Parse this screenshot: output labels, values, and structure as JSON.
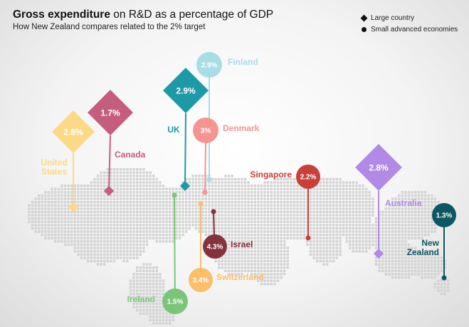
{
  "title_bold": "Gross expenditure",
  "title_rest": " on R&D as a percentage of GDP",
  "subtitle": "How New Zealand compares related to the 2% target",
  "legend": {
    "large": "Large country",
    "small": "Small advanced economies"
  },
  "chart_data": {
    "type": "scatter",
    "title": "Gross expenditure on R&D as a percentage of GDP",
    "subtitle": "How New Zealand compares related to the 2% target",
    "legend_placement": "top-right",
    "series": [
      {
        "name": "Large country",
        "marker": "diamond"
      },
      {
        "name": "Small advanced economies",
        "marker": "circle"
      }
    ],
    "points": [
      {
        "id": "usa",
        "country": "United States",
        "value_label": "2.8%",
        "value": 2.8,
        "group": "Large country",
        "color": "#fcd987"
      },
      {
        "id": "canada",
        "country": "Canada",
        "value_label": "1.7%",
        "value": 1.7,
        "group": "Large country",
        "color": "#c55d7d"
      },
      {
        "id": "uk",
        "country": "UK",
        "value_label": "2.9%",
        "value": 2.9,
        "group": "Large country",
        "color": "#1e9aa7"
      },
      {
        "id": "australia",
        "country": "Australia",
        "value_label": "2.8%",
        "value": 2.8,
        "group": "Large country",
        "color": "#b18ae6"
      },
      {
        "id": "finland",
        "country": "Finland",
        "value_label": "2.9%",
        "value": 2.9,
        "group": "Small advanced economies",
        "color": "#a9dde6"
      },
      {
        "id": "denmark",
        "country": "Denmark",
        "value_label": "3%",
        "value": 3.0,
        "group": "Small advanced economies",
        "color": "#f59592"
      },
      {
        "id": "singapore",
        "country": "Singapore",
        "value_label": "2.2%",
        "value": 2.2,
        "group": "Small advanced economies",
        "color": "#c8403a"
      },
      {
        "id": "israel",
        "country": "Israel",
        "value_label": "4.3%",
        "value": 4.3,
        "group": "Small advanced economies",
        "color": "#85323f"
      },
      {
        "id": "switzerland",
        "country": "Switzerland",
        "value_label": "3.4%",
        "value": 3.4,
        "group": "Small advanced economies",
        "color": "#fbbe6a"
      },
      {
        "id": "ireland",
        "country": "Ireland",
        "value_label": "1.5%",
        "value": 1.5,
        "group": "Small advanced economies",
        "color": "#7cc47a"
      },
      {
        "id": "nz",
        "country": "New Zealand",
        "value_label": "1.3%",
        "value": 1.3,
        "group": "Small advanced economies",
        "color": "#0f5663"
      }
    ]
  }
}
